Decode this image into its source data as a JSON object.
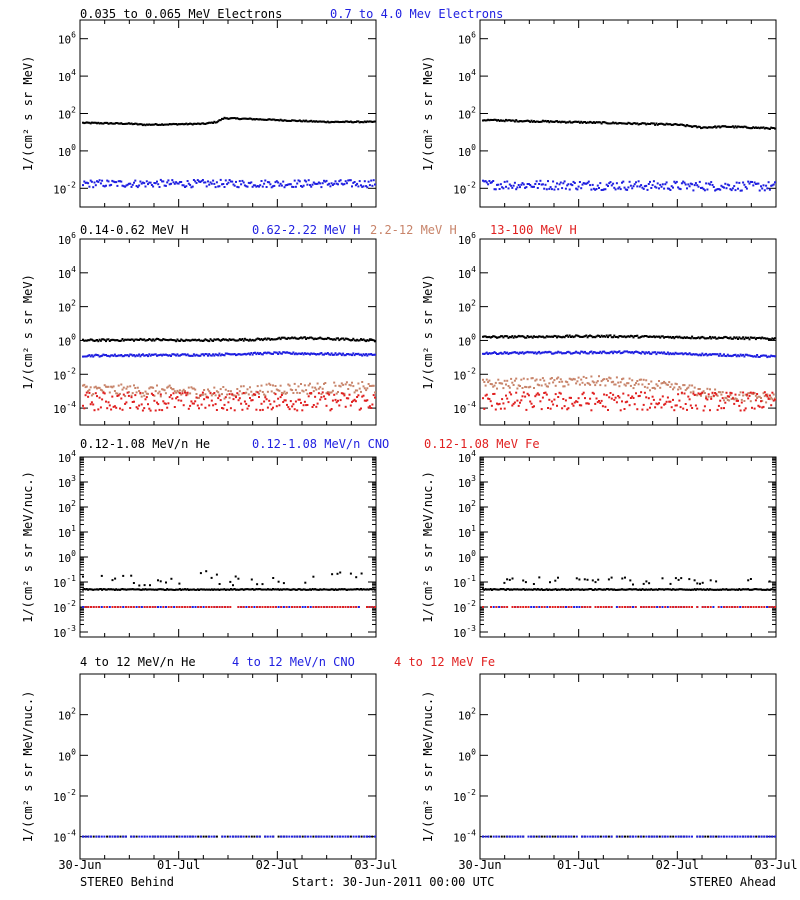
{
  "footer": {
    "left_label": "STEREO Behind",
    "center_label": "Start: 30-Jun-2011 00:00 UTC",
    "right_label": "STEREO Ahead"
  },
  "x_ticks": [
    "30-Jun",
    "01-Jul",
    "02-Jul",
    "03-Jul"
  ],
  "colors": {
    "black": "#000000",
    "blue": "#1f1fe0",
    "tan": "#c8846a",
    "red": "#e01f1f"
  },
  "chart_data": [
    {
      "type": "scatter",
      "row": "electrons",
      "legend": [
        {
          "text": "0.035 to 0.065 MeV Electrons",
          "color": "black"
        },
        {
          "text": "0.7 to 4.0 Mev Electrons",
          "color": "blue"
        }
      ],
      "ylabel": "1/(cm² s sr MeV)",
      "log_y": true,
      "ylim_exp": [
        -3,
        7
      ],
      "ytick_exps": [
        -2,
        0,
        2,
        4,
        6
      ],
      "xlim_days": [
        0,
        3
      ],
      "panels": [
        {
          "side": "STEREO Behind",
          "series": [
            {
              "color": "black",
              "curve": [
                [
                  0,
                  1.5
                ],
                [
                  0.2,
                  1.45
                ],
                [
                  0.25,
                  1.4
                ],
                [
                  0.5,
                  1.45
                ],
                [
                  0.55,
                  1.55
                ],
                [
                  0.58,
                  1.75
                ],
                [
                  0.7,
                  1.7
                ],
                [
                  1.0,
                  1.55
                ],
                [
                  1.2,
                  1.55
                ]
              ],
              "scatter": 0.03
            },
            {
              "color": "blue",
              "curve": [
                [
                  0,
                  -1.75
                ],
                [
                  1.2,
                  -1.75
                ]
              ],
              "scatter": 0.2
            }
          ]
        },
        {
          "side": "STEREO Ahead",
          "series": [
            {
              "color": "black",
              "curve": [
                [
                  0,
                  1.65
                ],
                [
                  0.5,
                  1.5
                ],
                [
                  0.8,
                  1.4
                ],
                [
                  0.9,
                  1.25
                ],
                [
                  1.0,
                  1.3
                ],
                [
                  1.1,
                  1.25
                ],
                [
                  1.2,
                  1.2
                ]
              ],
              "scatter": 0.04
            },
            {
              "color": "blue",
              "curve": [
                [
                  0,
                  -1.8
                ],
                [
                  1.2,
                  -1.9
                ]
              ],
              "scatter": 0.25
            }
          ]
        }
      ]
    },
    {
      "type": "scatter",
      "row": "protons",
      "legend": [
        {
          "text": "0.14-0.62 MeV H",
          "color": "black"
        },
        {
          "text": "0.62-2.22 MeV H",
          "color": "blue"
        },
        {
          "text": "2.2-12 MeV H",
          "color": "tan"
        },
        {
          "text": "13-100 MeV H",
          "color": "red"
        }
      ],
      "ylabel": "1/(cm² s sr MeV)",
      "log_y": true,
      "ylim_exp": [
        -5,
        6
      ],
      "ytick_exps": [
        -4,
        -2,
        0,
        2,
        4,
        6
      ],
      "xlim_days": [
        0,
        3
      ],
      "panels": [
        {
          "side": "STEREO Behind",
          "series": [
            {
              "color": "black",
              "curve": [
                [
                  0,
                  0.0
                ],
                [
                  0.3,
                  0.05
                ],
                [
                  0.4,
                  0.0
                ],
                [
                  0.7,
                  0.05
                ],
                [
                  0.9,
                  0.15
                ],
                [
                  1.0,
                  0.1
                ],
                [
                  1.2,
                  0.0
                ]
              ],
              "scatter": 0.06
            },
            {
              "color": "blue",
              "curve": [
                [
                  0,
                  -0.9
                ],
                [
                  0.5,
                  -0.85
                ],
                [
                  0.8,
                  -0.75
                ],
                [
                  1.2,
                  -0.85
                ]
              ],
              "scatter": 0.06
            },
            {
              "color": "tan",
              "curve": [
                [
                  0,
                  -2.9
                ],
                [
                  0.6,
                  -3.1
                ],
                [
                  0.8,
                  -2.85
                ],
                [
                  1.2,
                  -2.8
                ]
              ],
              "scatter": 0.35
            },
            {
              "color": "red",
              "curve": [
                [
                  0,
                  -3.6
                ],
                [
                  1.2,
                  -3.6
                ]
              ],
              "scatter": 0.55
            }
          ]
        },
        {
          "side": "STEREO Ahead",
          "series": [
            {
              "color": "black",
              "curve": [
                [
                  0,
                  0.2
                ],
                [
                  0.5,
                  0.25
                ],
                [
                  1.0,
                  0.15
                ],
                [
                  1.2,
                  0.1
                ]
              ],
              "scatter": 0.06
            },
            {
              "color": "blue",
              "curve": [
                [
                  0,
                  -0.75
                ],
                [
                  0.6,
                  -0.7
                ],
                [
                  1.2,
                  -0.95
                ]
              ],
              "scatter": 0.06
            },
            {
              "color": "tan",
              "curve": [
                [
                  0,
                  -2.6
                ],
                [
                  0.5,
                  -2.4
                ],
                [
                  0.8,
                  -2.8
                ],
                [
                  1.0,
                  -3.3
                ],
                [
                  1.2,
                  -3.4
                ]
              ],
              "scatter": 0.3
            },
            {
              "color": "red",
              "curve": [
                [
                  0,
                  -3.6
                ],
                [
                  1.2,
                  -3.6
                ]
              ],
              "scatter": 0.55
            }
          ]
        }
      ]
    },
    {
      "type": "scatter",
      "row": "heavy_ions_low",
      "legend": [
        {
          "text": "0.12-1.08 MeV/n He",
          "color": "black"
        },
        {
          "text": "0.12-1.08 MeV/n CNO",
          "color": "blue"
        },
        {
          "text": "0.12-1.08 MeV Fe",
          "color": "red"
        }
      ],
      "ylabel": "1/(cm² s sr MeV/nuc.)",
      "log_y": true,
      "ylim_exp": [
        -3.2,
        4
      ],
      "ytick_exps": [
        -3,
        -2,
        -1,
        0,
        1,
        2,
        3,
        4
      ],
      "xlim_days": [
        0,
        3
      ],
      "panels": [
        {
          "side": "STEREO Behind",
          "series": [
            {
              "color": "black",
              "curve": [
                [
                  0,
                  -1.3
                ],
                [
                  1.2,
                  -1.3
                ]
              ],
              "scatter": 0.02
            },
            {
              "color": "black",
              "curve": [
                [
                  0,
                  -1.0
                ],
                [
                  0.5,
                  -0.8
                ],
                [
                  0.6,
                  -1.0
                ],
                [
                  1.0,
                  -0.75
                ],
                [
                  1.2,
                  -0.9
                ]
              ],
              "scatter": 0.25,
              "sparse": true
            },
            {
              "color": "blue",
              "curve": [
                [
                  0,
                  -2.0
                ],
                [
                  1.2,
                  -2.0
                ]
              ],
              "scatter": 0.0,
              "sparse": true
            },
            {
              "color": "red",
              "curve": [
                [
                  0,
                  -2.0
                ],
                [
                  1.2,
                  -2.0
                ]
              ],
              "scatter": 0.0,
              "sparse": true
            }
          ]
        },
        {
          "side": "STEREO Ahead",
          "series": [
            {
              "color": "black",
              "curve": [
                [
                  0,
                  -1.3
                ],
                [
                  1.2,
                  -1.3
                ]
              ],
              "scatter": 0.02
            },
            {
              "color": "black",
              "curve": [
                [
                  0,
                  -0.95
                ],
                [
                  1.2,
                  -0.95
                ]
              ],
              "scatter": 0.15,
              "sparse": true
            },
            {
              "color": "blue",
              "curve": [
                [
                  0,
                  -2.0
                ],
                [
                  1.2,
                  -2.0
                ]
              ],
              "scatter": 0.0,
              "sparse": true
            },
            {
              "color": "red",
              "curve": [
                [
                  0,
                  -2.0
                ],
                [
                  1.2,
                  -2.0
                ]
              ],
              "scatter": 0.0,
              "sparse": true
            }
          ]
        }
      ]
    },
    {
      "type": "scatter",
      "row": "heavy_ions_high",
      "legend": [
        {
          "text": "4 to 12 MeV/n He",
          "color": "black"
        },
        {
          "text": "4 to 12 MeV/n CNO",
          "color": "blue"
        },
        {
          "text": "4 to 12 MeV Fe",
          "color": "red"
        }
      ],
      "ylabel": "1/(cm² s sr MeV/nuc.)",
      "log_y": true,
      "ylim_exp": [
        -5.1,
        4
      ],
      "ytick_exps": [
        -4,
        -2,
        0,
        2
      ],
      "xlim_days": [
        0,
        3
      ],
      "panels": [
        {
          "side": "STEREO Behind",
          "series": [
            {
              "color": "black",
              "curve": [
                [
                  0,
                  -4.0
                ],
                [
                  1.2,
                  -4.0
                ]
              ],
              "scatter": 0.0,
              "sparse": true
            },
            {
              "color": "blue",
              "curve": [
                [
                  0,
                  -4.0
                ],
                [
                  1.2,
                  -4.0
                ]
              ],
              "scatter": 0.0,
              "sparse": true
            }
          ]
        },
        {
          "side": "STEREO Ahead",
          "series": [
            {
              "color": "black",
              "curve": [
                [
                  0,
                  -4.0
                ],
                [
                  1.2,
                  -4.0
                ]
              ],
              "scatter": 0.0,
              "sparse": true
            },
            {
              "color": "blue",
              "curve": [
                [
                  0,
                  -4.0
                ],
                [
                  1.2,
                  -4.0
                ]
              ],
              "scatter": 0.0,
              "sparse": true
            }
          ]
        }
      ]
    }
  ]
}
